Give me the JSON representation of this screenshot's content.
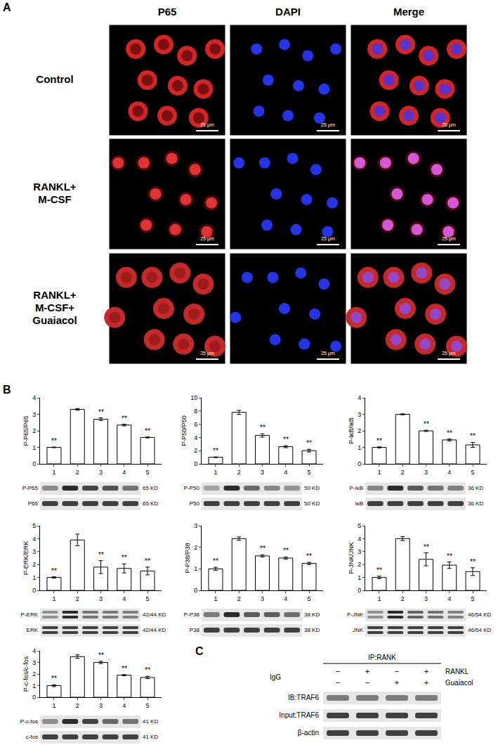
{
  "panel_a": {
    "letter": "A",
    "columns": [
      "P65",
      "DAPI",
      "Merge"
    ],
    "rows": [
      [
        "Control"
      ],
      [
        "RANKL+",
        "M-CSF"
      ],
      [
        "RANKL+",
        "M-CSF+",
        "Guaiacol"
      ]
    ],
    "scale_bar": "25 μm"
  },
  "panel_b": {
    "letter": "B",
    "blots": [
      [
        {
          "label": "P-P65",
          "size": "65 KD"
        },
        {
          "label": "P65",
          "size": "65 KD"
        }
      ],
      [
        {
          "label": "P-P50",
          "size": "50 KD"
        },
        {
          "label": "P50",
          "size": "50 KD"
        }
      ],
      [
        {
          "label": "P-IκB",
          "size": "36 KD"
        },
        {
          "label": "IκB",
          "size": "36 KD"
        }
      ],
      [
        {
          "label": "P-ERK",
          "size": "42/44 KD"
        },
        {
          "label": "ERK",
          "size": "42/44 KD"
        }
      ],
      [
        {
          "label": "P-P38",
          "size": "38 KD"
        },
        {
          "label": "P38",
          "size": "38 KD"
        }
      ],
      [
        {
          "label": "P-JNK",
          "size": "46/54 KD"
        },
        {
          "label": "JNK",
          "size": "46/54 KD"
        }
      ],
      [
        {
          "label": "P-c-fos",
          "size": "41 KD"
        },
        {
          "label": "c-fos",
          "size": "41 KD"
        }
      ]
    ]
  },
  "chart_data": [
    {
      "type": "bar",
      "y_label": "P-P65/P65",
      "categories": [
        "1",
        "2",
        "3",
        "4",
        "5"
      ],
      "values": [
        1,
        3.3,
        2.7,
        2.35,
        1.6
      ],
      "errors": [
        0.02,
        0.05,
        0.08,
        0.05,
        0.03
      ],
      "significance": [
        "**",
        null,
        "**",
        "**",
        "**"
      ],
      "color": "#ffffff",
      "ylim": [
        0,
        4
      ],
      "yticks": [
        0,
        1,
        2,
        3,
        4
      ],
      "grid": false
    },
    {
      "type": "bar",
      "y_label": "P-P50/P50",
      "categories": [
        "1",
        "2",
        "3",
        "4",
        "5"
      ],
      "values": [
        1,
        7.8,
        4.3,
        2.6,
        2.0
      ],
      "errors": [
        0.05,
        0.3,
        0.25,
        0.15,
        0.2
      ],
      "significance": [
        "**",
        null,
        "**",
        "**",
        "**"
      ],
      "color": "#ffffff",
      "ylim": [
        0,
        10
      ],
      "yticks": [
        0,
        2,
        4,
        6,
        8,
        10
      ],
      "grid": false
    },
    {
      "type": "bar",
      "y_label": "P-IκB/IκB",
      "categories": [
        "1",
        "2",
        "3",
        "4",
        "5"
      ],
      "values": [
        1,
        3.0,
        2.0,
        1.45,
        1.15
      ],
      "errors": [
        0.03,
        0.03,
        0.04,
        0.06,
        0.15
      ],
      "significance": [
        "**",
        null,
        "**",
        "**",
        "**"
      ],
      "color": "#ffffff",
      "ylim": [
        0,
        4
      ],
      "yticks": [
        0,
        1,
        2,
        3,
        4
      ],
      "grid": false
    },
    {
      "type": "bar",
      "y_label": "P-ERK/ERK",
      "categories": [
        "1",
        "2",
        "3",
        "4",
        "5"
      ],
      "values": [
        1,
        3.9,
        1.8,
        1.7,
        1.5
      ],
      "errors": [
        0.05,
        0.45,
        0.5,
        0.35,
        0.3
      ],
      "significance": [
        "**",
        null,
        "**",
        "**",
        "**"
      ],
      "color": "#ffffff",
      "ylim": [
        0,
        5
      ],
      "yticks": [
        0,
        1,
        2,
        3,
        4,
        5
      ],
      "grid": false
    },
    {
      "type": "bar",
      "y_label": "P-P38/P38",
      "categories": [
        "1",
        "2",
        "3",
        "4",
        "5"
      ],
      "values": [
        1,
        2.4,
        1.6,
        1.5,
        1.25
      ],
      "errors": [
        0.07,
        0.08,
        0.05,
        0.05,
        0.05
      ],
      "significance": [
        "**",
        null,
        "**",
        "**",
        "**"
      ],
      "color": "#ffffff",
      "ylim": [
        0,
        3
      ],
      "yticks": [
        0,
        1,
        2,
        3
      ],
      "grid": false
    },
    {
      "type": "bar",
      "y_label": "P-JNK/JNK",
      "categories": [
        "1",
        "2",
        "3",
        "4",
        "5"
      ],
      "values": [
        1,
        4.0,
        2.4,
        1.95,
        1.45
      ],
      "errors": [
        0.1,
        0.15,
        0.5,
        0.25,
        0.3
      ],
      "significance": [
        "**",
        null,
        "**",
        "**",
        "**"
      ],
      "color": "#ffffff",
      "ylim": [
        0,
        5
      ],
      "yticks": [
        0,
        1,
        2,
        3,
        4,
        5
      ],
      "grid": false
    },
    {
      "type": "bar",
      "y_label": "P-c-fos/c-fos",
      "categories": [
        "1",
        "2",
        "3",
        "4",
        "5"
      ],
      "values": [
        1,
        3.5,
        3.0,
        1.9,
        1.7
      ],
      "errors": [
        0.08,
        0.15,
        0.1,
        0.05,
        0.1
      ],
      "significance": [
        "**",
        null,
        "**",
        "**",
        "**"
      ],
      "color": "#ffffff",
      "ylim": [
        0,
        4
      ],
      "yticks": [
        0,
        1,
        2,
        3,
        4
      ],
      "grid": false
    }
  ],
  "panel_c": {
    "letter": "C",
    "ip": "IP:RANK",
    "left_label": "IgG",
    "treatments": [
      {
        "label": "RANKL",
        "signs": [
          "−",
          "+",
          "−",
          "+"
        ]
      },
      {
        "label": "Guaiacol",
        "signs": [
          "−",
          "−",
          "+",
          "+"
        ]
      }
    ],
    "blots": [
      "IB:TRAF6",
      "Input:TRAF6",
      "β-actin"
    ]
  }
}
